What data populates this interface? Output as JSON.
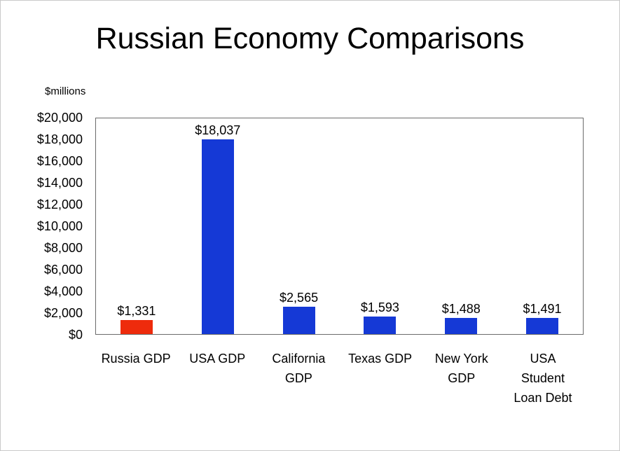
{
  "title": "Russian Economy Comparisons",
  "chart_data": {
    "type": "bar",
    "title": "Russian Economy Comparisons",
    "y_axis_title": "$millions",
    "xlabel": "",
    "ylabel": "$millions",
    "categories": [
      "Russia GDP",
      "USA GDP",
      "California\nGDP",
      "Texas GDP",
      "New York\nGDP",
      "USA\nStudent\nLoan Debt"
    ],
    "values": [
      1331,
      18037,
      2565,
      1593,
      1488,
      1491
    ],
    "value_labels": [
      "$1,331",
      "$18,037",
      "$2,565",
      "$1,593",
      "$1,488",
      "$1,491"
    ],
    "bar_colors": [
      "#ee2b0c",
      "#1539d6",
      "#1539d6",
      "#1539d6",
      "#1539d6",
      "#1539d6"
    ],
    "ylim": [
      0,
      20000
    ],
    "y_ticks": [
      0,
      2000,
      4000,
      6000,
      8000,
      10000,
      12000,
      14000,
      16000,
      18000,
      20000
    ],
    "y_tick_labels": [
      "$0",
      "$2,000",
      "$4,000",
      "$6,000",
      "$8,000",
      "$10,000",
      "$12,000",
      "$14,000",
      "$16,000",
      "$18,000",
      "$20,000"
    ],
    "grid": false,
    "legend": false
  }
}
